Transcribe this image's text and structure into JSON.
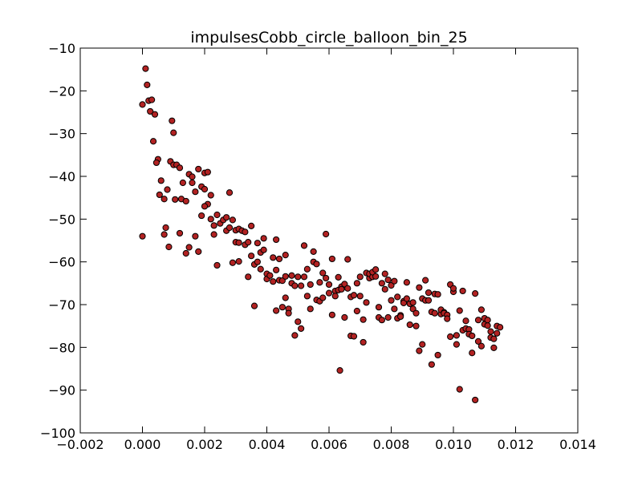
{
  "chart_data": {
    "type": "scatter",
    "title": "impulsesCobb_circle_balloon_bin_25",
    "xlabel": "",
    "ylabel": "",
    "xlim": [
      -0.002,
      0.014
    ],
    "ylim": [
      -100,
      -10
    ],
    "xticks": [
      -0.002,
      0.0,
      0.002,
      0.004,
      0.006,
      0.008,
      0.01,
      0.012,
      0.014
    ],
    "xtick_labels": [
      "−0.002",
      "0.000",
      "0.002",
      "0.004",
      "0.006",
      "0.008",
      "0.010",
      "0.012",
      "0.014"
    ],
    "yticks": [
      -100,
      -90,
      -80,
      -70,
      -60,
      -50,
      -40,
      -30,
      -20,
      -10
    ],
    "ytick_labels": [
      "−100",
      "−90",
      "−80",
      "−70",
      "−60",
      "−50",
      "−40",
      "−30",
      "−20",
      "−10"
    ],
    "grid": false,
    "marker_color": "#b22222",
    "marker_edge_color": "#000000",
    "points": [
      [
        0.0001,
        -14.8
      ],
      [
        0.00015,
        -18.6
      ],
      [
        0.0,
        -23.2
      ],
      [
        0.0002,
        -22.3
      ],
      [
        0.0003,
        -22.1
      ],
      [
        0.00025,
        -24.8
      ],
      [
        0.0004,
        -25.5
      ],
      [
        0.00035,
        -31.8
      ],
      [
        0.0005,
        -36.0
      ],
      [
        0.00045,
        -36.8
      ],
      [
        0.0006,
        -41.0
      ],
      [
        0.00055,
        -44.3
      ],
      [
        0.0007,
        -45.3
      ],
      [
        0.0,
        -54.0
      ],
      [
        0.0007,
        -53.6
      ],
      [
        0.00075,
        -52.0
      ],
      [
        0.00085,
        -56.5
      ],
      [
        0.0008,
        -43.1
      ],
      [
        0.0009,
        -36.5
      ],
      [
        0.00095,
        -27.0
      ],
      [
        0.001,
        -29.8
      ],
      [
        0.001,
        -37.3
      ],
      [
        0.0011,
        -37.3
      ],
      [
        0.0012,
        -38.0
      ],
      [
        0.00105,
        -45.4
      ],
      [
        0.0013,
        -41.5
      ],
      [
        0.00125,
        -45.3
      ],
      [
        0.0014,
        -45.8
      ],
      [
        0.0012,
        -53.3
      ],
      [
        0.0015,
        -39.5
      ],
      [
        0.0016,
        -40.1
      ],
      [
        0.0016,
        -41.5
      ],
      [
        0.0017,
        -43.6
      ],
      [
        0.0015,
        -56.6
      ],
      [
        0.0014,
        -58.0
      ],
      [
        0.0017,
        -54.0
      ],
      [
        0.0018,
        -57.6
      ],
      [
        0.0018,
        -38.3
      ],
      [
        0.002,
        -39.2
      ],
      [
        0.0021,
        -39.0
      ],
      [
        0.0019,
        -42.4
      ],
      [
        0.002,
        -43.0
      ],
      [
        0.0022,
        -44.4
      ],
      [
        0.0021,
        -46.5
      ],
      [
        0.0019,
        -49.2
      ],
      [
        0.002,
        -47.0
      ],
      [
        0.0022,
        -50.0
      ],
      [
        0.0023,
        -51.5
      ],
      [
        0.0023,
        -53.6
      ],
      [
        0.0024,
        -60.8
      ],
      [
        0.0024,
        -49.0
      ],
      [
        0.0025,
        -51.0
      ],
      [
        0.0026,
        -50.2
      ],
      [
        0.0027,
        -49.6
      ],
      [
        0.0028,
        -43.8
      ],
      [
        0.0027,
        -52.7
      ],
      [
        0.0028,
        -52.0
      ],
      [
        0.0029,
        -50.2
      ],
      [
        0.003,
        -52.6
      ],
      [
        0.0029,
        -60.2
      ],
      [
        0.0031,
        -52.3
      ],
      [
        0.003,
        -55.4
      ],
      [
        0.0031,
        -55.5
      ],
      [
        0.0032,
        -52.7
      ],
      [
        0.0033,
        -53.0
      ],
      [
        0.0031,
        -59.9
      ],
      [
        0.0033,
        -56.0
      ],
      [
        0.0034,
        -55.4
      ],
      [
        0.0034,
        -63.5
      ],
      [
        0.0035,
        -51.6
      ],
      [
        0.0035,
        -58.6
      ],
      [
        0.0036,
        -60.6
      ],
      [
        0.0036,
        -70.3
      ],
      [
        0.0037,
        -60.0
      ],
      [
        0.0037,
        -55.6
      ],
      [
        0.0038,
        -57.8
      ],
      [
        0.0038,
        -61.7
      ],
      [
        0.0039,
        -57.2
      ],
      [
        0.0039,
        -54.5
      ],
      [
        0.004,
        -62.8
      ],
      [
        0.004,
        -64.0
      ],
      [
        0.0041,
        -63.2
      ],
      [
        0.0042,
        -64.6
      ],
      [
        0.0042,
        -59.0
      ],
      [
        0.0043,
        -61.9
      ],
      [
        0.0043,
        -54.8
      ],
      [
        0.0043,
        -71.4
      ],
      [
        0.0044,
        -64.3
      ],
      [
        0.0044,
        -59.3
      ],
      [
        0.0045,
        -64.4
      ],
      [
        0.0045,
        -70.6
      ],
      [
        0.0046,
        -63.4
      ],
      [
        0.0046,
        -68.4
      ],
      [
        0.0046,
        -58.4
      ],
      [
        0.0047,
        -71.0
      ],
      [
        0.0047,
        -72.0
      ],
      [
        0.0048,
        -63.2
      ],
      [
        0.0048,
        -65.0
      ],
      [
        0.0049,
        -65.6
      ],
      [
        0.0049,
        -77.2
      ],
      [
        0.005,
        -63.5
      ],
      [
        0.005,
        -74.0
      ],
      [
        0.0051,
        -75.6
      ],
      [
        0.0051,
        -65.6
      ],
      [
        0.0052,
        -56.2
      ],
      [
        0.0052,
        -63.5
      ],
      [
        0.0053,
        -61.7
      ],
      [
        0.0053,
        -68.0
      ],
      [
        0.0054,
        -65.3
      ],
      [
        0.0054,
        -71.0
      ],
      [
        0.0055,
        -57.6
      ],
      [
        0.0055,
        -60.0
      ],
      [
        0.0056,
        -60.5
      ],
      [
        0.0056,
        -68.9
      ],
      [
        0.0057,
        -64.8
      ],
      [
        0.0057,
        -69.2
      ],
      [
        0.0058,
        -62.6
      ],
      [
        0.0058,
        -68.4
      ],
      [
        0.0059,
        -53.5
      ],
      [
        0.0059,
        -63.8
      ],
      [
        0.006,
        -65.3
      ],
      [
        0.006,
        -67.3
      ],
      [
        0.0061,
        -59.3
      ],
      [
        0.0061,
        -72.4
      ],
      [
        0.0062,
        -66.8
      ],
      [
        0.0062,
        -68.0
      ],
      [
        0.0063,
        -63.6
      ],
      [
        0.0063,
        -66.6
      ],
      [
        0.00635,
        -85.4
      ],
      [
        0.0064,
        -65.8
      ],
      [
        0.0064,
        -66.4
      ],
      [
        0.0065,
        -73.0
      ],
      [
        0.0065,
        -65.2
      ],
      [
        0.0066,
        -59.4
      ],
      [
        0.0066,
        -66.2
      ],
      [
        0.0067,
        -68.2
      ],
      [
        0.0067,
        -77.3
      ],
      [
        0.0068,
        -67.8
      ],
      [
        0.0068,
        -77.4
      ],
      [
        0.0069,
        -65.0
      ],
      [
        0.0069,
        -71.5
      ],
      [
        0.007,
        -63.5
      ],
      [
        0.007,
        -68.0
      ],
      [
        0.0071,
        -78.8
      ],
      [
        0.0071,
        -73.5
      ],
      [
        0.0072,
        -62.6
      ],
      [
        0.0072,
        -69.5
      ],
      [
        0.0073,
        -63.8
      ],
      [
        0.0073,
        -62.8
      ],
      [
        0.0074,
        -63.5
      ],
      [
        0.0074,
        -62.4
      ],
      [
        0.0075,
        -63.4
      ],
      [
        0.0075,
        -61.8
      ],
      [
        0.0076,
        -73.0
      ],
      [
        0.0076,
        -70.6
      ],
      [
        0.0077,
        -73.6
      ],
      [
        0.0077,
        -65.0
      ],
      [
        0.0078,
        -62.8
      ],
      [
        0.0078,
        -66.4
      ],
      [
        0.0079,
        -73.0
      ],
      [
        0.0079,
        -64.2
      ],
      [
        0.008,
        -69.0
      ],
      [
        0.008,
        -65.5
      ],
      [
        0.0081,
        -64.5
      ],
      [
        0.0081,
        -71.0
      ],
      [
        0.0082,
        -68.2
      ],
      [
        0.0082,
        -73.2
      ],
      [
        0.0083,
        -72.5
      ],
      [
        0.0083,
        -72.8
      ],
      [
        0.0084,
        -69.2
      ],
      [
        0.0084,
        -69.6
      ],
      [
        0.0085,
        -64.8
      ],
      [
        0.0085,
        -68.6
      ],
      [
        0.0086,
        -74.7
      ],
      [
        0.0086,
        -69.8
      ],
      [
        0.0087,
        -69.5
      ],
      [
        0.0087,
        -71.0
      ],
      [
        0.0088,
        -75.0
      ],
      [
        0.0088,
        -72.0
      ],
      [
        0.0089,
        -80.8
      ],
      [
        0.0089,
        -66.0
      ],
      [
        0.009,
        -68.6
      ],
      [
        0.009,
        -79.3
      ],
      [
        0.0091,
        -69.0
      ],
      [
        0.0091,
        -64.3
      ],
      [
        0.0092,
        -67.2
      ],
      [
        0.0092,
        -69.0
      ],
      [
        0.0093,
        -71.7
      ],
      [
        0.0093,
        -84.0
      ],
      [
        0.0094,
        -67.5
      ],
      [
        0.0094,
        -72.0
      ],
      [
        0.0095,
        -81.8
      ],
      [
        0.0095,
        -67.6
      ],
      [
        0.0096,
        -72.2
      ],
      [
        0.0096,
        -71.2
      ],
      [
        0.0097,
        -71.8
      ],
      [
        0.0097,
        -72.0
      ],
      [
        0.0098,
        -72.4
      ],
      [
        0.0098,
        -73.3
      ],
      [
        0.0099,
        -65.3
      ],
      [
        0.0099,
        -77.5
      ],
      [
        0.01,
        -67.0
      ],
      [
        0.01,
        -66.2
      ],
      [
        0.0101,
        -77.2
      ],
      [
        0.0101,
        -79.3
      ],
      [
        0.0102,
        -89.8
      ],
      [
        0.0102,
        -71.4
      ],
      [
        0.0103,
        -76.0
      ],
      [
        0.0103,
        -66.8
      ],
      [
        0.0104,
        -75.6
      ],
      [
        0.0104,
        -73.8
      ],
      [
        0.0105,
        -75.8
      ],
      [
        0.0105,
        -76.9
      ],
      [
        0.0106,
        -81.3
      ],
      [
        0.0106,
        -77.3
      ],
      [
        0.0107,
        -92.3
      ],
      [
        0.0107,
        -67.4
      ],
      [
        0.0108,
        -73.6
      ],
      [
        0.0108,
        -78.6
      ],
      [
        0.0109,
        -79.7
      ],
      [
        0.0109,
        -71.2
      ],
      [
        0.011,
        -73.2
      ],
      [
        0.011,
        -74.6
      ],
      [
        0.0111,
        -74.9
      ],
      [
        0.0111,
        -73.6
      ],
      [
        0.0112,
        -77.7
      ],
      [
        0.0112,
        -76.3
      ],
      [
        0.0113,
        -78.0
      ],
      [
        0.0113,
        -80.1
      ],
      [
        0.0114,
        -75.0
      ],
      [
        0.0114,
        -76.7
      ],
      [
        0.0115,
        -75.3
      ]
    ]
  }
}
